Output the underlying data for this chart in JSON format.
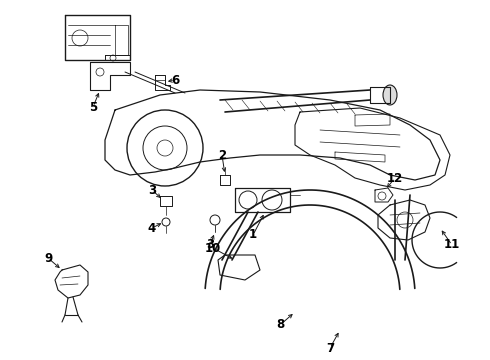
{
  "background_color": "#ffffff",
  "line_color": "#1a1a1a",
  "fig_width": 4.9,
  "fig_height": 3.6,
  "dpi": 100,
  "label_fontsize": 8.5,
  "lw": 0.7
}
